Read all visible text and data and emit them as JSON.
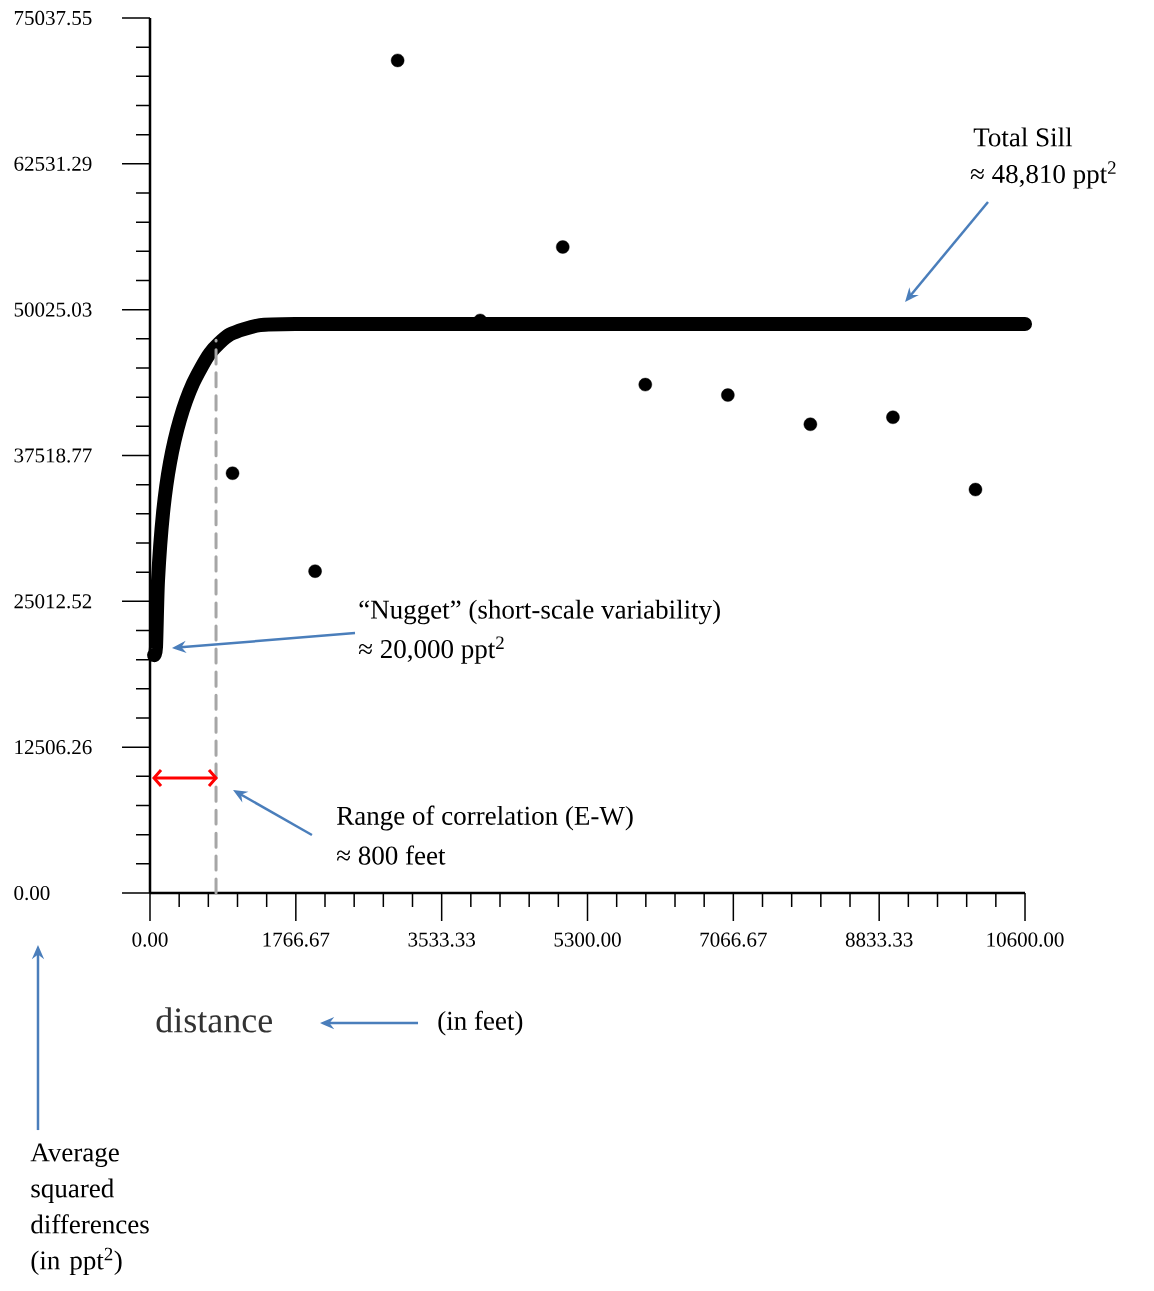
{
  "chart_data": {
    "type": "scatter",
    "xlabel": "distance",
    "xlim": [
      0,
      10600
    ],
    "ylim": [
      0,
      75037.55
    ],
    "xticks": [
      {
        "value": 0,
        "label": "0.00"
      },
      {
        "value": 353.33,
        "label": null
      },
      {
        "value": 706.67,
        "label": null
      },
      {
        "value": 1060,
        "label": null
      },
      {
        "value": 1413.33,
        "label": null
      },
      {
        "value": 1766.67,
        "label": "1766.67"
      },
      {
        "value": 2120,
        "label": null
      },
      {
        "value": 2473.33,
        "label": null
      },
      {
        "value": 2826.67,
        "label": null
      },
      {
        "value": 3180,
        "label": null
      },
      {
        "value": 3533.33,
        "label": "3533.33"
      },
      {
        "value": 3886.67,
        "label": null
      },
      {
        "value": 4240,
        "label": null
      },
      {
        "value": 4593.33,
        "label": null
      },
      {
        "value": 4946.67,
        "label": null
      },
      {
        "value": 5300,
        "label": "5300.00"
      },
      {
        "value": 5653.33,
        "label": null
      },
      {
        "value": 6006.67,
        "label": null
      },
      {
        "value": 6360,
        "label": null
      },
      {
        "value": 6713.33,
        "label": null
      },
      {
        "value": 7066.67,
        "label": "7066.67"
      },
      {
        "value": 7420,
        "label": null
      },
      {
        "value": 7773.33,
        "label": null
      },
      {
        "value": 8126.67,
        "label": null
      },
      {
        "value": 8480,
        "label": null
      },
      {
        "value": 8833.33,
        "label": "8833.33"
      },
      {
        "value": 9186.67,
        "label": null
      },
      {
        "value": 9540,
        "label": null
      },
      {
        "value": 9893.33,
        "label": null
      },
      {
        "value": 10246.67,
        "label": null
      },
      {
        "value": 10600,
        "label": "10600.00"
      }
    ],
    "yticks": [
      {
        "value": 0,
        "label": "0.00"
      },
      {
        "value": 2501.25,
        "label": null
      },
      {
        "value": 5002.5,
        "label": null
      },
      {
        "value": 7503.76,
        "label": null
      },
      {
        "value": 10005.01,
        "label": null
      },
      {
        "value": 12506.26,
        "label": "12506.26"
      },
      {
        "value": 15007.51,
        "label": null
      },
      {
        "value": 17508.76,
        "label": null
      },
      {
        "value": 20010.01,
        "label": null
      },
      {
        "value": 22511.27,
        "label": null
      },
      {
        "value": 25012.52,
        "label": "25012.52"
      },
      {
        "value": 27513.77,
        "label": null
      },
      {
        "value": 30015.02,
        "label": null
      },
      {
        "value": 32516.27,
        "label": null
      },
      {
        "value": 35017.52,
        "label": null
      },
      {
        "value": 37518.77,
        "label": "37518.77"
      },
      {
        "value": 40020.03,
        "label": null
      },
      {
        "value": 42521.28,
        "label": null
      },
      {
        "value": 45022.53,
        "label": null
      },
      {
        "value": 47523.78,
        "label": null
      },
      {
        "value": 50025.03,
        "label": "50025.03"
      },
      {
        "value": 52526.28,
        "label": null
      },
      {
        "value": 55027.53,
        "label": null
      },
      {
        "value": 57528.79,
        "label": null
      },
      {
        "value": 60030.04,
        "label": null
      },
      {
        "value": 62531.29,
        "label": "62531.29"
      },
      {
        "value": 65032.54,
        "label": null
      },
      {
        "value": 67533.79,
        "label": null
      },
      {
        "value": 70035.04,
        "label": null
      },
      {
        "value": 72536.3,
        "label": null
      },
      {
        "value": 75037.55,
        "label": "75037.55"
      }
    ],
    "series": [
      {
        "type": "line",
        "color": "#000000",
        "marker": "none",
        "x": [
          50,
          73,
          97,
          158,
          242,
          363,
          521,
          727,
          969,
          1333,
          1853,
          2500,
          10600
        ],
        "values": [
          20400,
          21100,
          26800,
          32600,
          36900,
          40600,
          43700,
          46300,
          47900,
          48700,
          48800,
          48800,
          48800
        ]
      },
      {
        "type": "line",
        "color": "#a6a6a6",
        "marker": "none",
        "line_style": "dashed",
        "x": [
          800,
          800
        ],
        "values": [
          0,
          47400
        ]
      },
      {
        "color": "#000000",
        "marker": "circle",
        "x": [
          1000,
          2000,
          3000,
          4000,
          5000,
          6000,
          7000,
          8000,
          9000,
          10000
        ],
        "values": [
          36000,
          27600,
          71400,
          49100,
          55400,
          43600,
          42700,
          40200,
          40800,
          34600
        ]
      }
    ],
    "annotations": [
      "Total Sill",
      "≈ 48,810 ppt$^{2}$",
      "“Nugget” (short-scale variability)",
      "≈ 20,000 ppt$^{2}$",
      "Range of correlation (E-W)",
      "≈ 800 feet",
      "(in feet)",
      "Average squared differences (in ppt$^{2}$)"
    ]
  }
}
